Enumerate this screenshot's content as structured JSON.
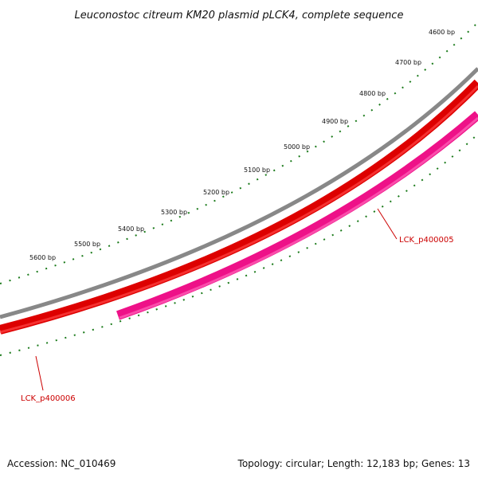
{
  "title": "Leuconostoc citreum KM20 plasmid pLCK4, complete sequence",
  "accession": "Accession: NC_010469",
  "topology": "Topology: circular; Length: 12,183 bp; Genes: 13",
  "ticks": [
    "4600 bp",
    "4700 bp",
    "4800 bp",
    "4900 bp",
    "5000 bp",
    "5100 bp",
    "5200 bp",
    "5300 bp",
    "5400 bp",
    "5500 bp",
    "5600 bp"
  ],
  "genes": [
    {
      "name": "LCK_p400005",
      "strand": "reverse",
      "color": "#ee1188"
    },
    {
      "name": "LCK_p400006",
      "strand": "forward",
      "color": "#dd0000"
    }
  ],
  "colors": {
    "backbone": "#888888",
    "forward_gene": "#dd0000",
    "reverse_gene": "#ee1188",
    "ticks": "#1a7a1a",
    "gene_label": "#cc0000"
  }
}
